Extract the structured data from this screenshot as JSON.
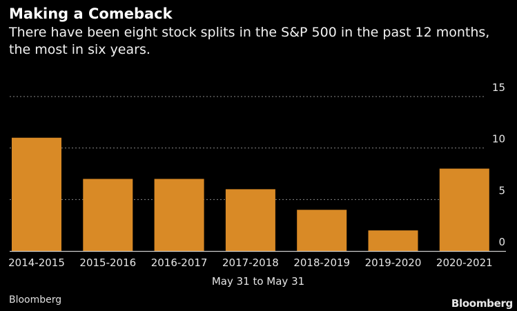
{
  "header": {
    "title": "Making a Comeback",
    "subtitle": "There have been eight stock splits in the S&P 500 in the past 12 months, the most in six years."
  },
  "footer": {
    "source": "Bloomberg",
    "logo": "Bloomberg"
  },
  "colors": {
    "background": "#000000",
    "bar": "#d98a26",
    "gridline": "#8a8a8a",
    "text": "#e6e6e6"
  },
  "chart_data": {
    "type": "bar",
    "title": "Making a Comeback",
    "subtitle": "There have been eight stock splits in the S&P 500 in the past 12 months, the most in six years.",
    "categories": [
      "2014-2015",
      "2015-2016",
      "2016-2017",
      "2017-2018",
      "2018-2019",
      "2019-2020",
      "2020-2021"
    ],
    "values": [
      11,
      7,
      7,
      6,
      4,
      2,
      8
    ],
    "xlabel": "May 31 to May 31",
    "ylabel": "",
    "ylim": [
      0,
      15
    ],
    "yticks": [
      0,
      5,
      10,
      15
    ],
    "y_axis_side": "right",
    "grid": true,
    "grid_style": "dotted",
    "legend": "none",
    "source": "Bloomberg"
  }
}
